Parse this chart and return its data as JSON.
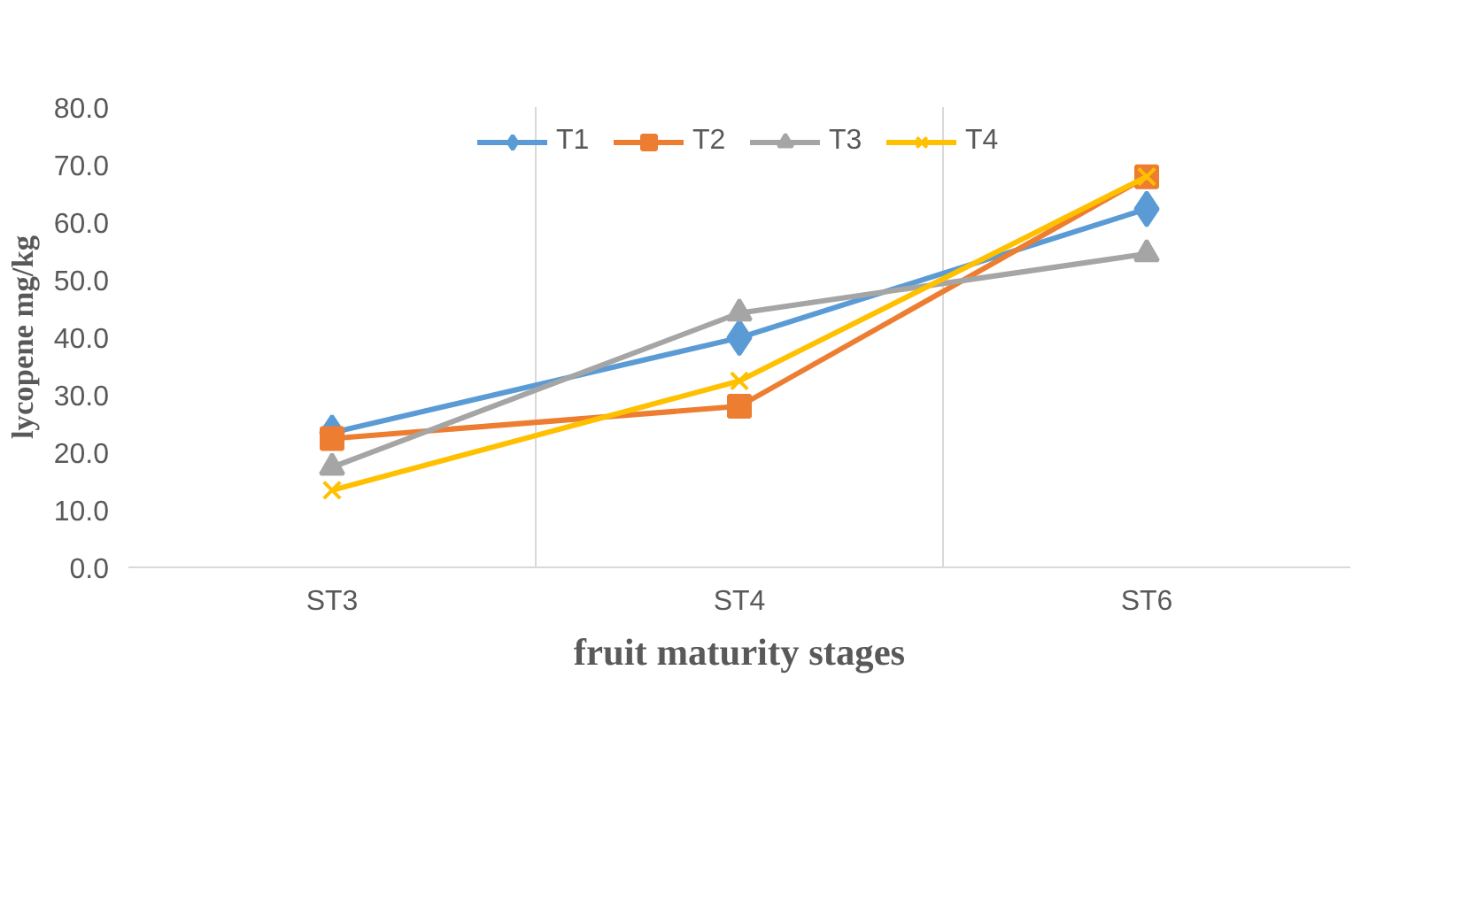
{
  "chart_data": {
    "type": "line",
    "xlabel": "fruit maturity stages",
    "ylabel": "lycopene mg/kg",
    "categories": [
      "ST3",
      "ST4",
      "ST6"
    ],
    "series": [
      {
        "name": "T1",
        "color": "#5b9bd5",
        "marker": "diamond",
        "values": [
          23.4,
          39.9,
          62.3
        ]
      },
      {
        "name": "T2",
        "color": "#ed7d31",
        "marker": "square",
        "values": [
          22.4,
          28.0,
          67.9
        ]
      },
      {
        "name": "T3",
        "color": "#a5a5a5",
        "marker": "triangle",
        "values": [
          17.4,
          44.2,
          54.5
        ]
      },
      {
        "name": "T4",
        "color": "#ffc000",
        "marker": "cross",
        "values": [
          13.4,
          32.4,
          67.9
        ]
      }
    ],
    "ylim": [
      0,
      80
    ],
    "yticks": [
      {
        "value": 0,
        "label": "0.0"
      },
      {
        "value": 10,
        "label": "10.0"
      },
      {
        "value": 20,
        "label": "20.0"
      },
      {
        "value": 30,
        "label": "30.0"
      },
      {
        "value": 40,
        "label": "40.0"
      },
      {
        "value": 50,
        "label": "50.0"
      },
      {
        "value": 60,
        "label": "60.0"
      },
      {
        "value": 70,
        "label": "70.0"
      },
      {
        "value": 80,
        "label": "80.0"
      }
    ],
    "grid": "x",
    "legend": "top"
  }
}
